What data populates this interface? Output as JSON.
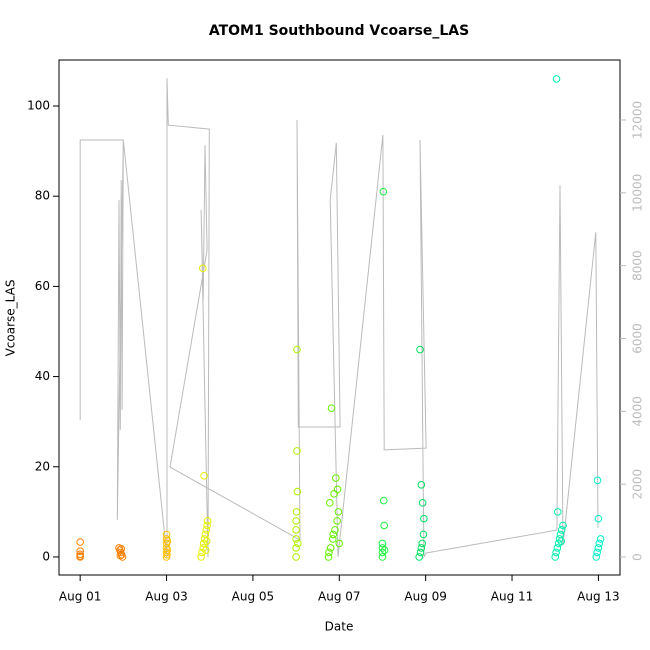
{
  "chart_data": {
    "type": "scatter",
    "title": "ATOM1 Southbound Vcoarse_LAS",
    "x_label": "Date",
    "y_label": "Vcoarse_LAS",
    "xlim": [
      -0.49,
      12.5
    ],
    "xticks": [
      {
        "value": 0,
        "label": "Aug 01"
      },
      {
        "value": 2,
        "label": "Aug 03"
      },
      {
        "value": 4,
        "label": "Aug 05"
      },
      {
        "value": 6,
        "label": "Aug 07"
      },
      {
        "value": 8,
        "label": "Aug 09"
      },
      {
        "value": 10,
        "label": "Aug 11"
      },
      {
        "value": 12,
        "label": "Aug 13"
      }
    ],
    "ylim": [
      -4,
      110.2
    ],
    "yticks": [
      0,
      20,
      40,
      60,
      80,
      100
    ],
    "y2lim": [
      -494,
      13647
    ],
    "y2ticks": [
      0,
      2000,
      4000,
      6000,
      8000,
      10000,
      12000
    ],
    "y2_color": "#bbbbbb",
    "series": [
      {
        "type": "line",
        "axis": "y2",
        "color": "#bbbbbb",
        "x": [
          0,
          0,
          1.0,
          0.86,
          0.88,
          0.9,
          0.93,
          0.95,
          0.97,
          1.0,
          2.01,
          2.01,
          2.04,
          2.99,
          2.96,
          2.8,
          2.85,
          2.89,
          2.94,
          2.08,
          5.09,
          5.02,
          5.05,
          6.02,
          5.93,
          5.79,
          5.97,
          7.01,
          7.04,
          8.01,
          7.87,
          7.96,
          8.01,
          11.04,
          11.11,
          11.18,
          11.94,
          11.99
        ],
        "values": [
          3760,
          11450,
          11450,
          1020,
          5680,
          9800,
          3490,
          10350,
          4040,
          11450,
          0,
          13150,
          11860,
          11750,
          0,
          9530,
          7060,
          11310,
          8430,
          2470,
          470,
          12000,
          3570,
          3570,
          11370,
          9800,
          0,
          11590,
          2940,
          2990,
          11450,
          0,
          110,
          740,
          10210,
          330,
          8920,
          800
        ]
      },
      {
        "type": "scatter",
        "color": "#ff7f00",
        "x": [
          0,
          0,
          0,
          0,
          0,
          0.9,
          0.92,
          0.94,
          0.96,
          0.98,
          0.95,
          0.93
        ],
        "values": [
          3.3,
          1.3,
          0.6,
          0.2,
          0,
          2,
          1.5,
          1,
          0.5,
          0,
          1.8,
          0.3
        ]
      },
      {
        "type": "scatter",
        "color": "#ffbf00",
        "x": [
          2,
          2,
          2,
          2,
          2,
          2,
          2.02,
          2.02,
          2.01
        ],
        "values": [
          5,
          4,
          3,
          2,
          1,
          0,
          3.5,
          1.5,
          0.5
        ]
      },
      {
        "type": "scatter",
        "color": "#e5f000",
        "x": [
          2.8,
          2.82,
          2.85,
          2.86,
          2.88,
          2.9,
          2.92,
          2.94,
          2.95,
          2.84,
          2.87,
          2.91,
          2.93
        ],
        "values": [
          0,
          1,
          2,
          3,
          4,
          5,
          6,
          7,
          8,
          64,
          18,
          1.5,
          3.5
        ]
      },
      {
        "type": "scatter",
        "color": "#b0f000",
        "x": [
          5,
          5,
          5,
          5,
          5,
          5.01,
          5.02,
          5.02,
          5.03,
          5.04
        ],
        "values": [
          0,
          2,
          4,
          6,
          8,
          10,
          46,
          23.5,
          14.5,
          3
        ]
      },
      {
        "type": "scatter",
        "color": "#66f000",
        "x": [
          5.75,
          5.8,
          5.85,
          5.9,
          5.95,
          5.98,
          5.78,
          5.88,
          5.82,
          5.92,
          5.96,
          6.0,
          5.76,
          5.86
        ],
        "values": [
          0,
          2,
          4,
          6,
          8,
          10,
          12,
          14,
          33,
          17.5,
          15,
          3,
          1,
          5
        ]
      },
      {
        "type": "scatter",
        "color": "#20f040",
        "x": [
          7,
          7,
          7,
          7,
          7.02,
          7.03,
          7.04,
          7.05
        ],
        "values": [
          0,
          1,
          2,
          3,
          81,
          12.5,
          7,
          1.5
        ]
      },
      {
        "type": "scatter",
        "color": "#00e060",
        "x": [
          7.85,
          7.88,
          7.9,
          7.92,
          7.95,
          7.87,
          7.9,
          7.93,
          7.96
        ],
        "values": [
          0,
          1,
          2,
          3,
          5,
          46,
          16,
          12,
          8.5
        ]
      },
      {
        "type": "scatter",
        "color": "#00f0b0",
        "x": [
          11,
          11.02,
          11.05,
          11.08,
          11.1,
          11.12,
          11.15,
          11.18,
          11.03,
          11.06,
          11.14
        ],
        "values": [
          0,
          1,
          2,
          3,
          4,
          5,
          6,
          7,
          106,
          10,
          3.5
        ]
      },
      {
        "type": "scatter",
        "color": "#00f0c8",
        "x": [
          11.95,
          11.97,
          12,
          12.02,
          12.05,
          11.98,
          12.0
        ],
        "values": [
          0,
          1,
          2,
          3,
          4,
          17,
          8.5
        ]
      }
    ]
  }
}
